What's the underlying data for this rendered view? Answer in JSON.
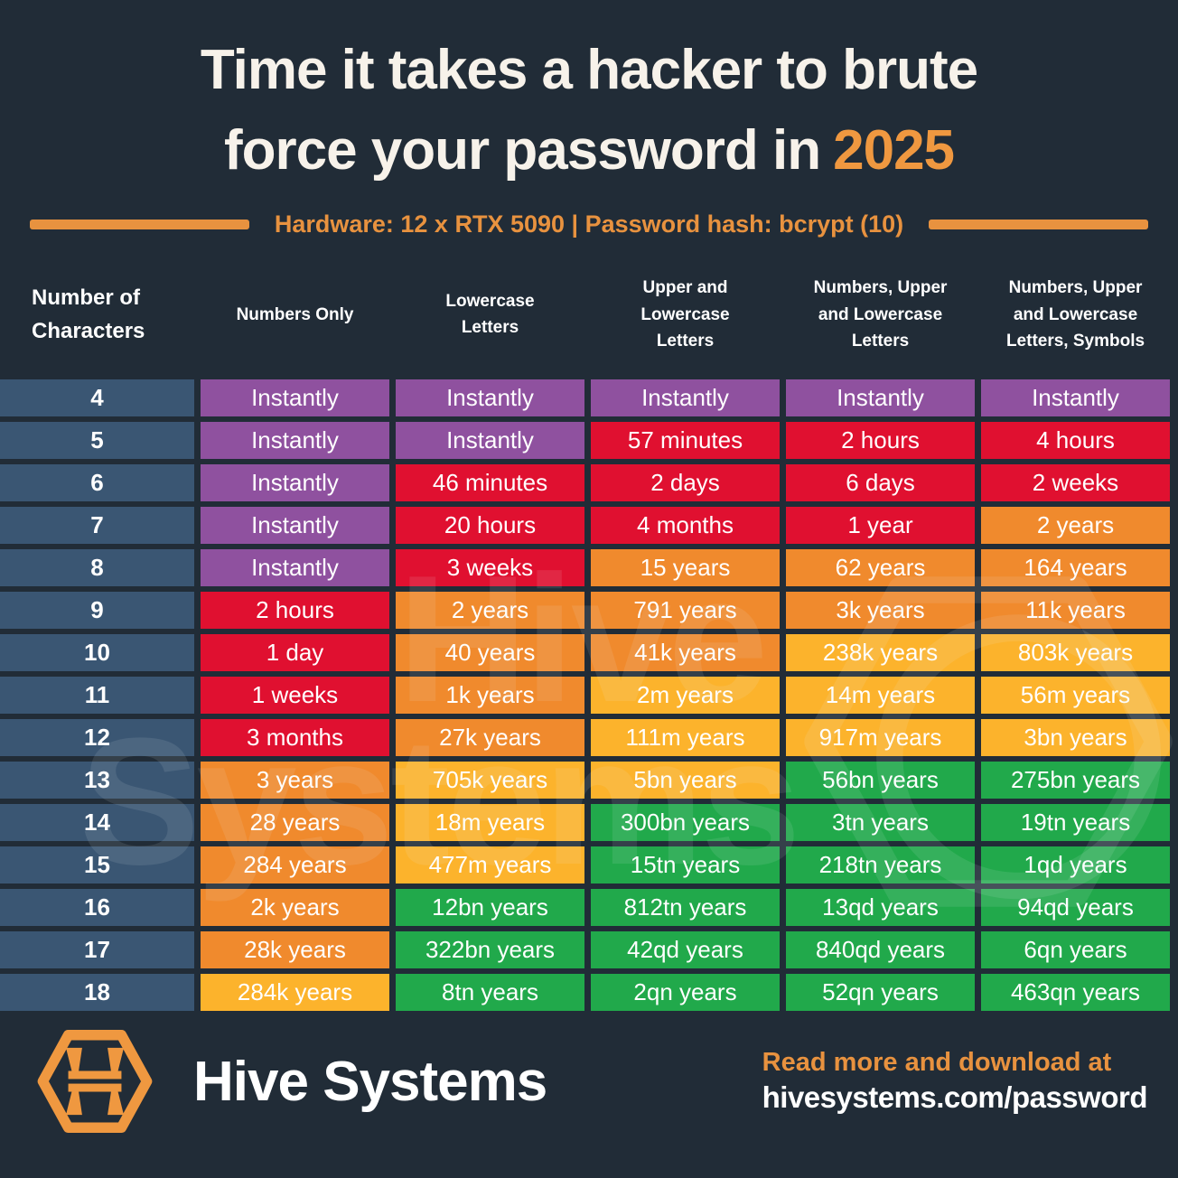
{
  "title": {
    "line1": "Time it takes a hacker to brute",
    "line2": "force your password in",
    "year": "2025"
  },
  "subtitle": {
    "text": "Hardware: 12 x RTX 5090 | Password hash: bcrypt (10)"
  },
  "watermark": {
    "line1": "Hive",
    "line2": "Systems"
  },
  "footer": {
    "brand": "Hive Systems",
    "cta_line1": "Read more and download at",
    "cta_line2": "hivesystems.com/password"
  },
  "colors": {
    "background": "#212c37",
    "accent_orange": "#e8923f",
    "title_cream": "#f7f2ea",
    "char_column_blue": "#3a5673",
    "level_purple": "#8f519f",
    "level_red": "#e01030",
    "level_orange": "#f08a2d",
    "level_yellow": "#fcb32c",
    "level_green": "#21a94b"
  },
  "chart_data": {
    "type": "table",
    "title": "Time it takes a hacker to brute force your password in 2025",
    "subtitle": "Hardware: 12 x RTX 5090 | Password hash: bcrypt (10)",
    "columns": [
      "Number of\nCharacters",
      "Numbers Only",
      "Lowercase Letters",
      "Upper and Lowercase Letters",
      "Numbers, Upper and Lowercase Letters",
      "Numbers, Upper and Lowercase Letters, Symbols"
    ],
    "rows": [
      {
        "chars": "4",
        "cells": [
          {
            "text": "Instantly",
            "level": "purple"
          },
          {
            "text": "Instantly",
            "level": "purple"
          },
          {
            "text": "Instantly",
            "level": "purple"
          },
          {
            "text": "Instantly",
            "level": "purple"
          },
          {
            "text": "Instantly",
            "level": "purple"
          }
        ]
      },
      {
        "chars": "5",
        "cells": [
          {
            "text": "Instantly",
            "level": "purple"
          },
          {
            "text": "Instantly",
            "level": "purple"
          },
          {
            "text": "57 minutes",
            "level": "red"
          },
          {
            "text": "2 hours",
            "level": "red"
          },
          {
            "text": "4 hours",
            "level": "red"
          }
        ]
      },
      {
        "chars": "6",
        "cells": [
          {
            "text": "Instantly",
            "level": "purple"
          },
          {
            "text": "46 minutes",
            "level": "red"
          },
          {
            "text": "2 days",
            "level": "red"
          },
          {
            "text": "6 days",
            "level": "red"
          },
          {
            "text": "2 weeks",
            "level": "red"
          }
        ]
      },
      {
        "chars": "7",
        "cells": [
          {
            "text": "Instantly",
            "level": "purple"
          },
          {
            "text": "20 hours",
            "level": "red"
          },
          {
            "text": "4 months",
            "level": "red"
          },
          {
            "text": "1 year",
            "level": "red"
          },
          {
            "text": "2 years",
            "level": "orange"
          }
        ]
      },
      {
        "chars": "8",
        "cells": [
          {
            "text": "Instantly",
            "level": "purple"
          },
          {
            "text": "3 weeks",
            "level": "red"
          },
          {
            "text": "15 years",
            "level": "orange"
          },
          {
            "text": "62 years",
            "level": "orange"
          },
          {
            "text": "164 years",
            "level": "orange"
          }
        ]
      },
      {
        "chars": "9",
        "cells": [
          {
            "text": "2 hours",
            "level": "red"
          },
          {
            "text": "2 years",
            "level": "orange"
          },
          {
            "text": "791 years",
            "level": "orange"
          },
          {
            "text": "3k years",
            "level": "orange"
          },
          {
            "text": "11k years",
            "level": "orange"
          }
        ]
      },
      {
        "chars": "10",
        "cells": [
          {
            "text": "1 day",
            "level": "red"
          },
          {
            "text": "40 years",
            "level": "orange"
          },
          {
            "text": "41k years",
            "level": "orange"
          },
          {
            "text": "238k years",
            "level": "yellow"
          },
          {
            "text": "803k years",
            "level": "yellow"
          }
        ]
      },
      {
        "chars": "11",
        "cells": [
          {
            "text": "1 weeks",
            "level": "red"
          },
          {
            "text": "1k years",
            "level": "orange"
          },
          {
            "text": "2m years",
            "level": "yellow"
          },
          {
            "text": "14m years",
            "level": "yellow"
          },
          {
            "text": "56m years",
            "level": "yellow"
          }
        ]
      },
      {
        "chars": "12",
        "cells": [
          {
            "text": "3 months",
            "level": "red"
          },
          {
            "text": "27k years",
            "level": "orange"
          },
          {
            "text": "111m years",
            "level": "yellow"
          },
          {
            "text": "917m years",
            "level": "yellow"
          },
          {
            "text": "3bn years",
            "level": "yellow"
          }
        ]
      },
      {
        "chars": "13",
        "cells": [
          {
            "text": "3 years",
            "level": "orange"
          },
          {
            "text": "705k years",
            "level": "yellow"
          },
          {
            "text": "5bn years",
            "level": "yellow"
          },
          {
            "text": "56bn years",
            "level": "green"
          },
          {
            "text": "275bn years",
            "level": "green"
          }
        ]
      },
      {
        "chars": "14",
        "cells": [
          {
            "text": "28 years",
            "level": "orange"
          },
          {
            "text": "18m years",
            "level": "yellow"
          },
          {
            "text": "300bn years",
            "level": "green"
          },
          {
            "text": "3tn years",
            "level": "green"
          },
          {
            "text": "19tn years",
            "level": "green"
          }
        ]
      },
      {
        "chars": "15",
        "cells": [
          {
            "text": "284 years",
            "level": "orange"
          },
          {
            "text": "477m years",
            "level": "yellow"
          },
          {
            "text": "15tn years",
            "level": "green"
          },
          {
            "text": "218tn years",
            "level": "green"
          },
          {
            "text": "1qd years",
            "level": "green"
          }
        ]
      },
      {
        "chars": "16",
        "cells": [
          {
            "text": "2k years",
            "level": "orange"
          },
          {
            "text": "12bn years",
            "level": "green"
          },
          {
            "text": "812tn years",
            "level": "green"
          },
          {
            "text": "13qd years",
            "level": "green"
          },
          {
            "text": "94qd years",
            "level": "green"
          }
        ]
      },
      {
        "chars": "17",
        "cells": [
          {
            "text": "28k years",
            "level": "orange"
          },
          {
            "text": "322bn years",
            "level": "green"
          },
          {
            "text": "42qd years",
            "level": "green"
          },
          {
            "text": "840qd years",
            "level": "green"
          },
          {
            "text": "6qn years",
            "level": "green"
          }
        ]
      },
      {
        "chars": "18",
        "cells": [
          {
            "text": "284k years",
            "level": "yellow"
          },
          {
            "text": "8tn years",
            "level": "green"
          },
          {
            "text": "2qn years",
            "level": "green"
          },
          {
            "text": "52qn years",
            "level": "green"
          },
          {
            "text": "463qn years",
            "level": "green"
          }
        ]
      }
    ]
  }
}
